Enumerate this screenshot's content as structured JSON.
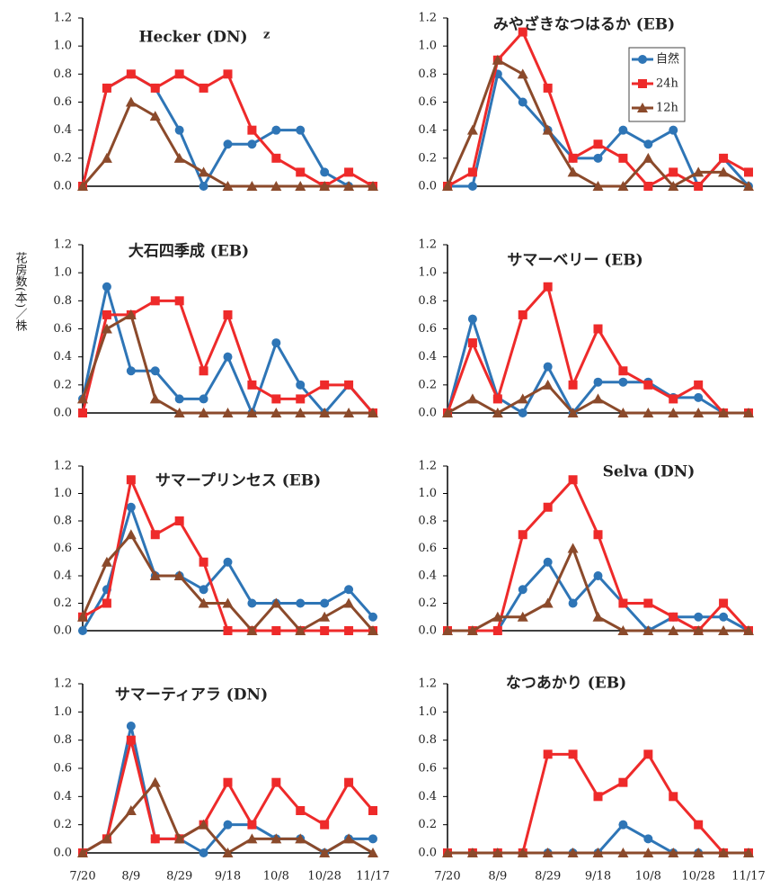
{
  "chart_data": [
    {
      "type": "line",
      "title": "Hecker (DN)",
      "note": "z",
      "ylim": [
        0,
        1.2
      ],
      "yticks": [
        {
          "value": 0,
          "label": "0.0"
        },
        0.2,
        0.4,
        0.6,
        0.8,
        {
          "value": 1,
          "label": "1.0"
        },
        1.2
      ],
      "series": [
        {
          "color": "#2e75b6",
          "marker": "circle",
          "values": [
            0,
            0.7,
            0.8,
            0.7,
            0.4,
            0,
            0.3,
            0.3,
            0.4,
            0.4,
            0.1,
            0,
            0
          ]
        },
        {
          "color": "#ee2a2a",
          "marker": "square",
          "values": [
            0,
            0.7,
            0.8,
            0.7,
            0.8,
            0.7,
            0.8,
            0.4,
            0.2,
            0.1,
            0,
            0.1,
            0
          ]
        },
        {
          "color": "#8b4a2b",
          "marker": "triangle",
          "values": [
            0,
            0.2,
            0.6,
            0.5,
            0.2,
            0.1,
            0,
            0,
            0,
            0,
            0,
            0,
            0
          ]
        }
      ]
    },
    {
      "type": "line",
      "title": "みやざきなつはるか (EB)",
      "legend": "upper right",
      "ylim": [
        0,
        1.2
      ],
      "yticks": [
        {
          "value": 0,
          "label": "0.0"
        },
        0.2,
        0.4,
        0.6,
        0.8,
        {
          "value": 1,
          "label": "1.0"
        },
        1.2
      ],
      "series": [
        {
          "name": "自然",
          "color": "#2e75b6",
          "marker": "circle",
          "values": [
            0,
            0,
            0.8,
            0.6,
            0.4,
            0.2,
            0.2,
            0.4,
            0.3,
            0.4,
            0,
            0.2,
            0
          ]
        },
        {
          "name": "24h",
          "color": "#ee2a2a",
          "marker": "square",
          "values": [
            0,
            0.1,
            0.9,
            1.1,
            0.7,
            0.2,
            0.3,
            0.2,
            0,
            0.1,
            0,
            0.2,
            0.1
          ]
        },
        {
          "name": "12h",
          "color": "#8b4a2b",
          "marker": "triangle",
          "values": [
            0,
            0.4,
            0.9,
            0.8,
            0.4,
            0.1,
            0,
            0,
            0.2,
            0,
            0.1,
            0.1,
            0
          ]
        }
      ]
    },
    {
      "type": "line",
      "title": "大石四季成 (EB)",
      "ylabel": "花房数(本)／株",
      "ylim": [
        0,
        1.2
      ],
      "yticks": [
        {
          "value": 0,
          "label": "0.0"
        },
        0.2,
        0.4,
        0.6,
        0.8,
        {
          "value": 1,
          "label": "1.0"
        },
        1.2
      ],
      "series": [
        {
          "color": "#2e75b6",
          "marker": "circle",
          "values": [
            0.1,
            0.9,
            0.3,
            0.3,
            0.1,
            0.1,
            0.4,
            0,
            0.5,
            0.2,
            0,
            0.2,
            0
          ]
        },
        {
          "color": "#ee2a2a",
          "marker": "square",
          "values": [
            0,
            0.7,
            0.7,
            0.8,
            0.8,
            0.3,
            0.7,
            0.2,
            0.1,
            0.1,
            0.2,
            0.2,
            0
          ]
        },
        {
          "color": "#8b4a2b",
          "marker": "triangle",
          "values": [
            0.1,
            0.6,
            0.7,
            0.1,
            0,
            0,
            0,
            0,
            0,
            0,
            0,
            0,
            0
          ]
        }
      ]
    },
    {
      "type": "line",
      "title": "サマーベリー (EB)",
      "ylim": [
        0,
        1.2
      ],
      "yticks": [
        {
          "value": 0,
          "label": "0.0"
        },
        0.2,
        0.4,
        0.6,
        0.8,
        {
          "value": 1,
          "label": "1.0"
        },
        1.2
      ],
      "series": [
        {
          "color": "#2e75b6",
          "marker": "circle",
          "values": [
            0,
            0.67,
            0.11,
            0,
            0.33,
            0,
            0.22,
            0.22,
            0.22,
            0.11,
            0.11,
            0,
            0
          ]
        },
        {
          "color": "#ee2a2a",
          "marker": "square",
          "values": [
            0,
            0.5,
            0.1,
            0.7,
            0.9,
            0.2,
            0.6,
            0.3,
            0.2,
            0.1,
            0.2,
            0,
            0
          ]
        },
        {
          "color": "#8b4a2b",
          "marker": "triangle",
          "values": [
            0,
            0.1,
            0,
            0.1,
            0.2,
            0,
            0.1,
            0,
            0,
            0,
            0,
            0,
            0
          ]
        }
      ]
    },
    {
      "type": "line",
      "title": "サマープリンセス (EB)",
      "ylim": [
        0,
        1.2
      ],
      "yticks": [
        {
          "value": 0,
          "label": "0.0"
        },
        0.2,
        0.4,
        0.6,
        0.8,
        {
          "value": 1,
          "label": "1.0"
        },
        1.2
      ],
      "series": [
        {
          "color": "#2e75b6",
          "marker": "circle",
          "values": [
            0,
            0.3,
            0.9,
            0.4,
            0.4,
            0.3,
            0.5,
            0.2,
            0.2,
            0.2,
            0.2,
            0.3,
            0.1
          ]
        },
        {
          "color": "#ee2a2a",
          "marker": "square",
          "values": [
            0.1,
            0.2,
            1.1,
            0.7,
            0.8,
            0.5,
            0,
            0,
            0,
            0,
            0,
            0,
            0
          ]
        },
        {
          "color": "#8b4a2b",
          "marker": "triangle",
          "values": [
            0.1,
            0.5,
            0.7,
            0.4,
            0.4,
            0.2,
            0.2,
            0,
            0.2,
            0,
            0.1,
            0.2,
            0
          ]
        }
      ]
    },
    {
      "type": "line",
      "title": "Selva (DN)",
      "ylim": [
        0,
        1.2
      ],
      "yticks": [
        {
          "value": 0,
          "label": "0.0"
        },
        0.2,
        0.4,
        0.6,
        0.8,
        {
          "value": 1,
          "label": "1.0"
        },
        1.2
      ],
      "series": [
        {
          "color": "#2e75b6",
          "marker": "circle",
          "values": [
            0,
            0,
            0,
            0.3,
            0.5,
            0.2,
            0.4,
            0.2,
            0,
            0.1,
            0.1,
            0.1,
            0
          ]
        },
        {
          "color": "#ee2a2a",
          "marker": "square",
          "values": [
            0,
            0,
            0,
            0.7,
            0.9,
            1.1,
            0.7,
            0.2,
            0.2,
            0.1,
            0,
            0.2,
            0
          ]
        },
        {
          "color": "#8b4a2b",
          "marker": "triangle",
          "values": [
            0,
            0,
            0.1,
            0.1,
            0.2,
            0.6,
            0.1,
            0,
            0,
            0,
            0,
            0,
            0
          ]
        }
      ]
    },
    {
      "type": "line",
      "title": "サマーティアラ (DN)",
      "categories": [
        "7/20",
        null,
        "8/9",
        null,
        "8/29",
        null,
        "9/18",
        null,
        "10/8",
        null,
        "10/28",
        null,
        "11/17"
      ],
      "ylim": [
        0,
        1.2
      ],
      "yticks": [
        {
          "value": 0,
          "label": "0.0"
        },
        0.2,
        0.4,
        0.6,
        0.8,
        {
          "value": 1,
          "label": "1.0"
        },
        1.2
      ],
      "series": [
        {
          "color": "#2e75b6",
          "marker": "circle",
          "values": [
            0,
            0.1,
            0.9,
            0.1,
            0.1,
            0,
            0.2,
            0.2,
            0.1,
            0.1,
            0,
            0.1,
            0.1
          ]
        },
        {
          "color": "#ee2a2a",
          "marker": "square",
          "values": [
            0,
            0.1,
            0.8,
            0.1,
            0.1,
            0.2,
            0.5,
            0.2,
            0.5,
            0.3,
            0.2,
            0.5,
            0.3
          ]
        },
        {
          "color": "#8b4a2b",
          "marker": "triangle",
          "values": [
            0,
            0.1,
            0.3,
            0.5,
            0.1,
            0.2,
            0,
            0.1,
            0.1,
            0.1,
            0,
            0.1,
            0
          ]
        }
      ]
    },
    {
      "type": "line",
      "title": "なつあかり (EB)",
      "categories": [
        "7/20",
        null,
        "8/9",
        null,
        "8/29",
        null,
        "9/18",
        null,
        "10/8",
        null,
        "10/28",
        null,
        "11/17"
      ],
      "ylim": [
        0,
        1.2
      ],
      "yticks": [
        {
          "value": 0,
          "label": "0.0"
        },
        0.2,
        0.4,
        0.6,
        0.8,
        {
          "value": 1,
          "label": "1.0"
        },
        1.2
      ],
      "series": [
        {
          "color": "#2e75b6",
          "marker": "circle",
          "values": [
            0,
            0,
            0,
            0,
            0,
            0,
            0,
            0.2,
            0.1,
            0,
            0,
            0,
            0
          ]
        },
        {
          "color": "#ee2a2a",
          "marker": "square",
          "values": [
            0,
            0,
            0,
            0,
            0.7,
            0.7,
            0.4,
            0.5,
            0.7,
            0.4,
            0.2,
            0,
            0
          ]
        },
        {
          "color": "#8b4a2b",
          "marker": "triangle",
          "values": [
            0,
            0,
            0,
            0,
            0,
            0,
            0,
            0,
            0,
            0,
            0,
            0,
            0
          ]
        }
      ]
    }
  ]
}
